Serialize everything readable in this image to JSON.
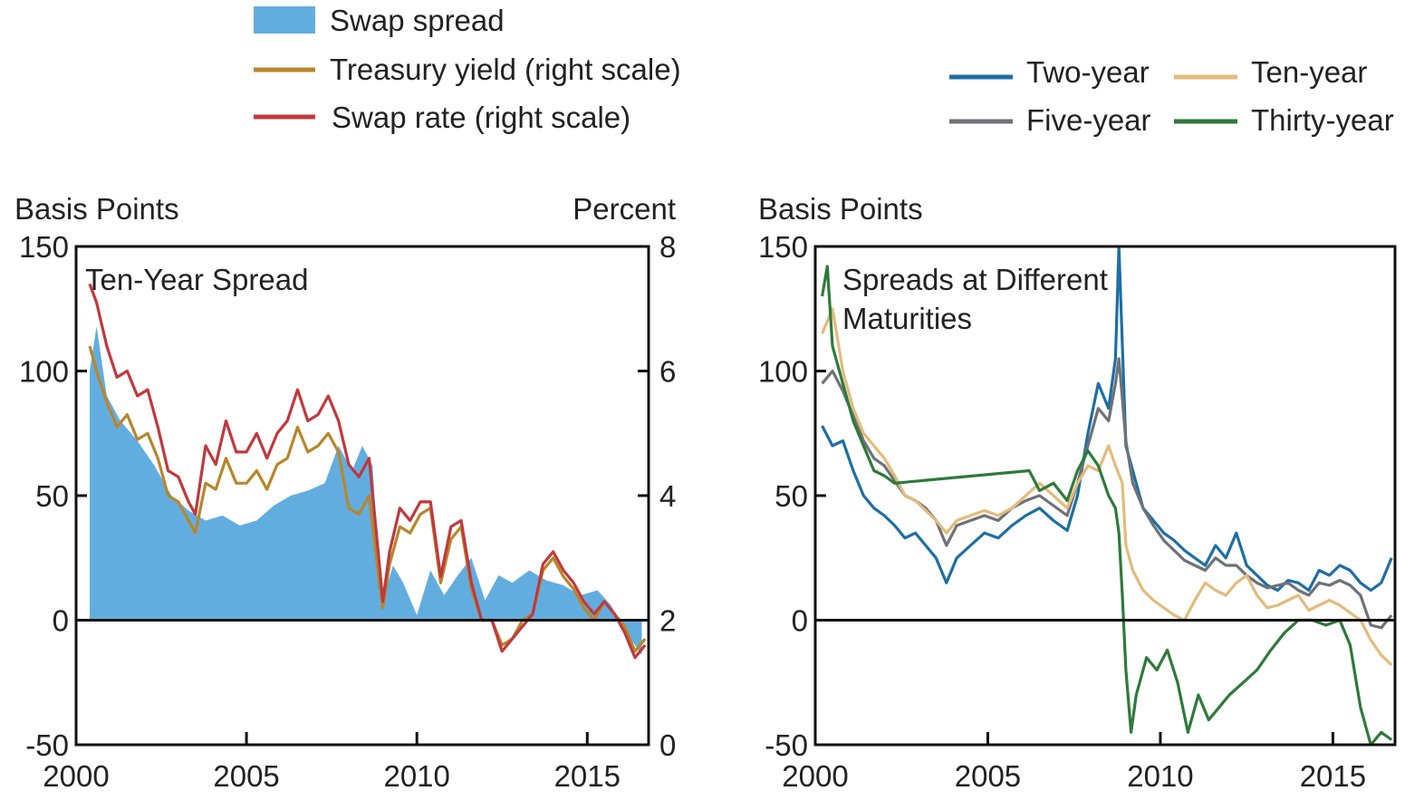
{
  "colors": {
    "swap_spread": "#62ade0",
    "treasury_yield": "#b8862a",
    "swap_rate": "#c0393d",
    "two_year": "#1d6fa3",
    "five_year": "#6e7278",
    "ten_year": "#e3bb7b",
    "thirty_year": "#2e7a3a",
    "axis": "#111111"
  },
  "left_legend": {
    "swap_spread": "Swap spread",
    "treasury_yield": "Treasury yield (right scale)",
    "swap_rate": "Swap rate (right scale)"
  },
  "right_legend": {
    "two_year": "Two-year",
    "five_year": "Five-year",
    "ten_year": "Ten-year",
    "thirty_year": "Thirty-year"
  },
  "chart_data": [
    {
      "type": "area",
      "title": "Ten-Year Spread",
      "ylabel_left": "Basis Points",
      "ylabel_right": "Percent",
      "xlim": [
        2000,
        2016.8
      ],
      "ylim_left": [
        -50,
        150
      ],
      "ylim_right": [
        0,
        8
      ],
      "x_ticks": [
        2000,
        2005,
        2010,
        2015
      ],
      "y_ticks_left": [
        150,
        100,
        50,
        0,
        -50
      ],
      "y_ticks_right": [
        8,
        6,
        4,
        2,
        0
      ],
      "grid": false,
      "legend": "top-left, above the chart",
      "series": [
        {
          "name": "Swap spread",
          "axis": "left",
          "style": "area",
          "x": [
            2000.4,
            2000.6,
            2000.9,
            2001.3,
            2001.8,
            2002.3,
            2002.8,
            2003.3,
            2003.8,
            2004.3,
            2004.8,
            2005.3,
            2005.8,
            2006.3,
            2006.8,
            2007.3,
            2007.7,
            2008.1,
            2008.4,
            2008.7,
            2008.85,
            2009.0,
            2009.3,
            2009.6,
            2010.0,
            2010.4,
            2010.8,
            2011.2,
            2011.6,
            2012.0,
            2012.4,
            2012.8,
            2013.3,
            2013.8,
            2014.3,
            2014.8,
            2015.3,
            2015.7,
            2016.0,
            2016.3,
            2016.6
          ],
          "y": [
            100,
            118,
            90,
            80,
            72,
            62,
            50,
            44,
            40,
            42,
            38,
            40,
            46,
            50,
            52,
            55,
            70,
            60,
            70,
            62,
            30,
            8,
            22,
            15,
            2,
            20,
            10,
            18,
            25,
            8,
            18,
            15,
            20,
            16,
            14,
            10,
            12,
            6,
            -2,
            -8,
            -14
          ]
        },
        {
          "name": "Treasury yield (right scale)",
          "axis": "right",
          "style": "line",
          "x": [
            2000.4,
            2000.6,
            2000.9,
            2001.2,
            2001.5,
            2001.8,
            2002.1,
            2002.4,
            2002.7,
            2003.0,
            2003.3,
            2003.5,
            2003.8,
            2004.1,
            2004.4,
            2004.7,
            2005.0,
            2005.3,
            2005.6,
            2005.9,
            2006.2,
            2006.5,
            2006.8,
            2007.1,
            2007.4,
            2007.7,
            2008.0,
            2008.3,
            2008.6,
            2008.9,
            2009.0,
            2009.2,
            2009.5,
            2009.8,
            2010.1,
            2010.4,
            2010.7,
            2011.0,
            2011.3,
            2011.6,
            2011.9,
            2012.2,
            2012.5,
            2012.8,
            2013.1,
            2013.4,
            2013.7,
            2014.0,
            2014.3,
            2014.6,
            2014.9,
            2015.2,
            2015.5,
            2015.8,
            2016.1,
            2016.4,
            2016.7
          ],
          "y": [
            6.4,
            6.0,
            5.5,
            5.1,
            5.3,
            4.9,
            5.0,
            4.6,
            4.0,
            3.9,
            3.6,
            3.4,
            4.2,
            4.1,
            4.6,
            4.2,
            4.2,
            4.4,
            4.1,
            4.5,
            4.6,
            5.1,
            4.7,
            4.8,
            5.0,
            4.7,
            3.8,
            3.7,
            4.0,
            2.6,
            2.2,
            2.9,
            3.5,
            3.4,
            3.7,
            3.8,
            2.6,
            3.3,
            3.5,
            2.5,
            2.0,
            2.0,
            1.6,
            1.7,
            2.0,
            2.1,
            2.8,
            3.0,
            2.7,
            2.5,
            2.2,
            2.0,
            2.3,
            2.1,
            1.9,
            1.5,
            1.7
          ]
        },
        {
          "name": "Swap rate (right scale)",
          "axis": "right",
          "style": "line",
          "x": [
            2000.4,
            2000.6,
            2000.9,
            2001.2,
            2001.5,
            2001.8,
            2002.1,
            2002.4,
            2002.7,
            2003.0,
            2003.3,
            2003.5,
            2003.8,
            2004.1,
            2004.4,
            2004.7,
            2005.0,
            2005.3,
            2005.6,
            2005.9,
            2006.2,
            2006.5,
            2006.8,
            2007.1,
            2007.4,
            2007.7,
            2008.0,
            2008.3,
            2008.6,
            2008.9,
            2009.0,
            2009.2,
            2009.5,
            2009.8,
            2010.1,
            2010.4,
            2010.7,
            2011.0,
            2011.3,
            2011.6,
            2011.9,
            2012.2,
            2012.5,
            2012.8,
            2013.1,
            2013.4,
            2013.7,
            2014.0,
            2014.3,
            2014.6,
            2014.9,
            2015.2,
            2015.5,
            2015.8,
            2016.1,
            2016.4,
            2016.7
          ],
          "y": [
            7.4,
            7.1,
            6.4,
            5.9,
            6.0,
            5.6,
            5.7,
            5.1,
            4.4,
            4.3,
            3.9,
            3.7,
            4.8,
            4.5,
            5.2,
            4.7,
            4.7,
            5.0,
            4.6,
            5.0,
            5.2,
            5.7,
            5.2,
            5.3,
            5.6,
            5.2,
            4.5,
            4.3,
            4.6,
            2.9,
            2.3,
            3.1,
            3.8,
            3.6,
            3.9,
            3.9,
            2.7,
            3.5,
            3.6,
            2.6,
            2.0,
            2.0,
            1.5,
            1.7,
            1.9,
            2.1,
            2.9,
            3.1,
            2.8,
            2.6,
            2.3,
            2.1,
            2.3,
            2.1,
            1.8,
            1.4,
            1.6
          ]
        }
      ]
    },
    {
      "type": "line",
      "title": "Spreads at Different Maturities",
      "ylabel": "Basis Points",
      "xlim": [
        2000,
        2016.8
      ],
      "ylim": [
        -50,
        150
      ],
      "x_ticks": [
        2000,
        2005,
        2010,
        2015
      ],
      "y_ticks": [
        150,
        100,
        50,
        0,
        -50
      ],
      "grid": false,
      "legend": "top-right, above the chart",
      "series": [
        {
          "name": "Two-year",
          "x": [
            2000.2,
            2000.5,
            2000.8,
            2001.1,
            2001.4,
            2001.7,
            2002.0,
            2002.3,
            2002.6,
            2002.9,
            2003.2,
            2003.5,
            2003.8,
            2004.1,
            2004.5,
            2004.9,
            2005.3,
            2005.7,
            2006.1,
            2006.5,
            2006.9,
            2007.3,
            2007.6,
            2007.9,
            2008.2,
            2008.5,
            2008.7,
            2008.8,
            2009.0,
            2009.2,
            2009.5,
            2009.8,
            2010.1,
            2010.4,
            2010.7,
            2011.0,
            2011.3,
            2011.6,
            2011.9,
            2012.2,
            2012.5,
            2012.8,
            2013.1,
            2013.4,
            2013.7,
            2014.0,
            2014.3,
            2014.6,
            2014.9,
            2015.2,
            2015.5,
            2015.8,
            2016.1,
            2016.4,
            2016.7
          ],
          "y": [
            78,
            70,
            72,
            60,
            50,
            45,
            42,
            38,
            33,
            35,
            30,
            25,
            15,
            25,
            30,
            35,
            33,
            38,
            42,
            45,
            40,
            36,
            50,
            75,
            95,
            85,
            105,
            150,
            70,
            60,
            45,
            40,
            35,
            32,
            28,
            25,
            22,
            30,
            25,
            35,
            22,
            18,
            14,
            12,
            16,
            15,
            12,
            20,
            18,
            22,
            20,
            15,
            12,
            15,
            25
          ]
        },
        {
          "name": "Five-year",
          "x": [
            2000.2,
            2000.5,
            2000.8,
            2001.1,
            2001.4,
            2001.7,
            2002.0,
            2002.3,
            2002.6,
            2002.9,
            2003.2,
            2003.5,
            2003.8,
            2004.1,
            2004.5,
            2004.9,
            2005.3,
            2005.7,
            2006.1,
            2006.5,
            2006.9,
            2007.3,
            2007.6,
            2007.9,
            2008.2,
            2008.5,
            2008.7,
            2008.8,
            2009.0,
            2009.2,
            2009.5,
            2009.8,
            2010.1,
            2010.4,
            2010.7,
            2011.0,
            2011.3,
            2011.6,
            2011.9,
            2012.2,
            2012.5,
            2012.8,
            2013.1,
            2013.4,
            2013.7,
            2014.0,
            2014.3,
            2014.6,
            2014.9,
            2015.2,
            2015.5,
            2015.8,
            2016.1,
            2016.4,
            2016.7
          ],
          "y": [
            95,
            100,
            92,
            82,
            72,
            65,
            62,
            56,
            50,
            48,
            45,
            40,
            30,
            38,
            40,
            42,
            40,
            45,
            48,
            50,
            46,
            42,
            55,
            70,
            85,
            80,
            95,
            105,
            72,
            55,
            45,
            38,
            32,
            28,
            24,
            22,
            20,
            25,
            22,
            22,
            18,
            15,
            13,
            14,
            15,
            12,
            10,
            15,
            14,
            16,
            14,
            10,
            -2,
            -3,
            2
          ]
        },
        {
          "name": "Ten-year",
          "x": [
            2000.2,
            2000.5,
            2000.8,
            2001.1,
            2001.4,
            2001.7,
            2002.0,
            2002.3,
            2002.6,
            2002.9,
            2003.2,
            2003.5,
            2003.8,
            2004.1,
            2004.5,
            2004.9,
            2005.3,
            2005.7,
            2006.1,
            2006.5,
            2006.9,
            2007.3,
            2007.6,
            2007.9,
            2008.2,
            2008.5,
            2008.7,
            2008.9,
            2009.0,
            2009.2,
            2009.5,
            2009.8,
            2010.1,
            2010.4,
            2010.7,
            2011.0,
            2011.3,
            2011.6,
            2011.9,
            2012.2,
            2012.5,
            2012.8,
            2013.1,
            2013.4,
            2013.7,
            2014.0,
            2014.3,
            2014.6,
            2014.9,
            2015.2,
            2015.5,
            2015.8,
            2016.1,
            2016.4,
            2016.7
          ],
          "y": [
            115,
            125,
            100,
            85,
            75,
            70,
            65,
            58,
            50,
            48,
            44,
            40,
            35,
            40,
            42,
            44,
            42,
            45,
            50,
            55,
            50,
            45,
            55,
            62,
            60,
            70,
            62,
            55,
            30,
            20,
            12,
            8,
            5,
            2,
            0,
            8,
            15,
            12,
            10,
            15,
            18,
            10,
            5,
            6,
            8,
            10,
            4,
            6,
            8,
            6,
            3,
            0,
            -8,
            -14,
            -18
          ]
        },
        {
          "name": "Thirty-year",
          "x": [
            2000.2,
            2000.35,
            2000.5,
            2000.8,
            2001.1,
            2001.4,
            2001.7,
            2002.0,
            2002.3,
            2006.2,
            2006.5,
            2006.9,
            2007.3,
            2007.6,
            2007.9,
            2008.2,
            2008.5,
            2008.7,
            2008.8,
            2008.9,
            2009.0,
            2009.15,
            2009.3,
            2009.6,
            2009.9,
            2010.2,
            2010.5,
            2010.8,
            2011.1,
            2011.4,
            2011.7,
            2012.0,
            2012.4,
            2012.8,
            2013.2,
            2013.6,
            2014.0,
            2014.4,
            2014.8,
            2015.2,
            2015.5,
            2015.8,
            2016.1,
            2016.4,
            2016.7
          ],
          "y": [
            130,
            142,
            110,
            95,
            80,
            70,
            60,
            58,
            55,
            60,
            52,
            55,
            48,
            60,
            68,
            62,
            50,
            45,
            35,
            10,
            -20,
            -45,
            -30,
            -15,
            -20,
            -12,
            -25,
            -45,
            -30,
            -40,
            -35,
            -30,
            -25,
            -20,
            -12,
            -5,
            0,
            0,
            -2,
            0,
            -10,
            -35,
            -50,
            -45,
            -48
          ]
        }
      ]
    }
  ]
}
